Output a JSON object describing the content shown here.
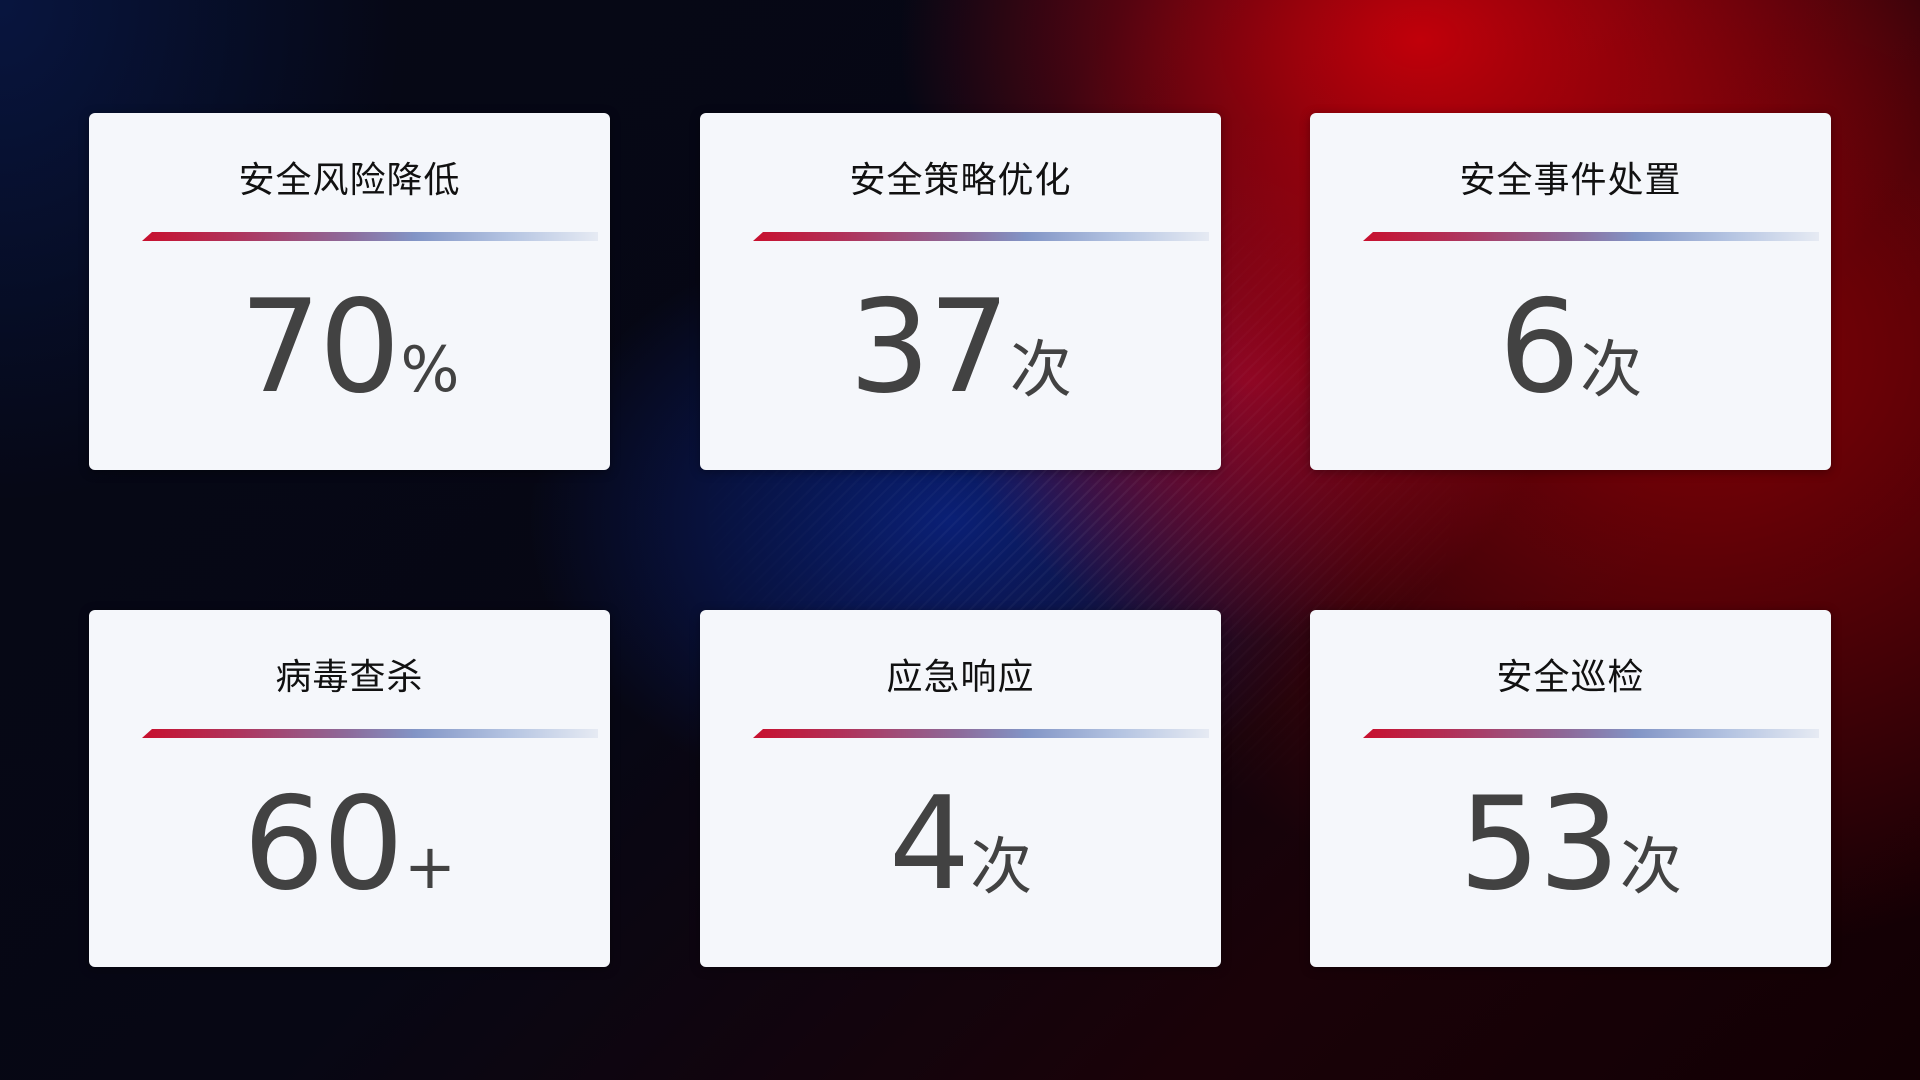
{
  "cards": [
    {
      "title": "安全风险降低",
      "value": "70",
      "unit": "%"
    },
    {
      "title": "安全策略优化",
      "value": "37",
      "unit": "次"
    },
    {
      "title": "安全事件处置",
      "value": "6",
      "unit": "次"
    },
    {
      "title": "病毒查杀",
      "value": "60",
      "unit": "+"
    },
    {
      "title": "应急响应",
      "value": "4",
      "unit": "次"
    },
    {
      "title": "安全巡检",
      "value": "53",
      "unit": "次"
    }
  ],
  "colors": {
    "accent_red": "#c8102e",
    "accent_blue": "#8295c6",
    "card_bg": "#f5f7fb",
    "value_text": "#424242"
  }
}
